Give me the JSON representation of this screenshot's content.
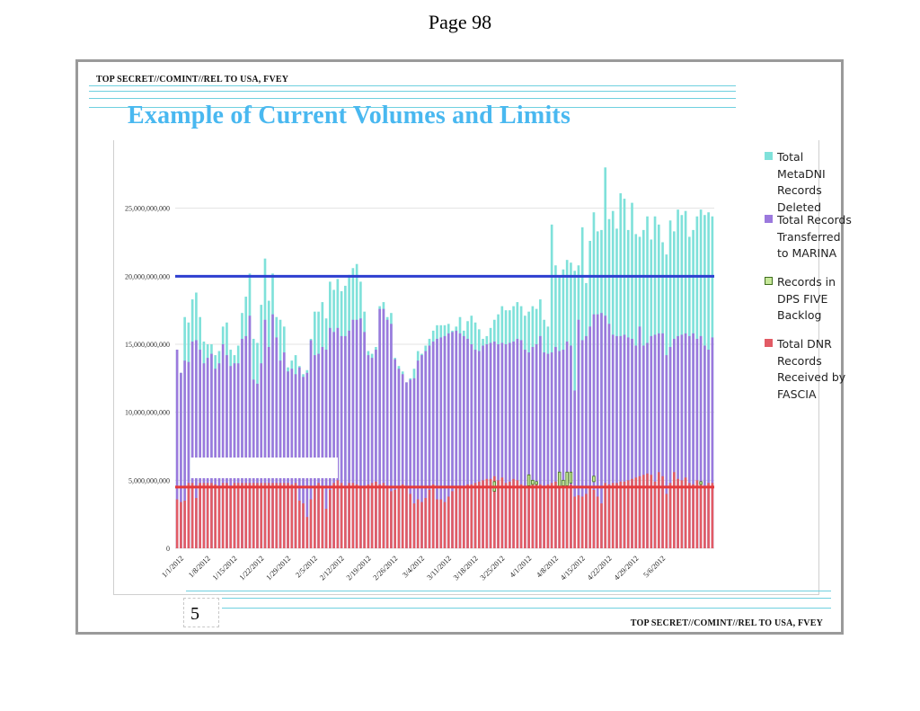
{
  "page_header": {
    "page_label": "Page 98"
  },
  "slide": {
    "classification_top": "TOP SECRET//COMINT//REL TO USA, FVEY",
    "classification_bottom": "TOP SECRET//COMINT//REL TO USA, FVEY",
    "title": "Example of  Current Volumes and Limits",
    "slide_number": "5"
  },
  "colors": {
    "deleted": "#7fe1da",
    "transferred": "#9b79dd",
    "backlog_fill": "#c7e89a",
    "backlog_stroke": "#3f6e1e",
    "received": "#e25b65",
    "limit_blue": "#2e3fd0",
    "limit_red": "#e53a3a",
    "title": "#49b8f0",
    "rule": "#6fd0df"
  },
  "legend": [
    {
      "key": "deleted",
      "label": "Total\nMetaDNI\nRecords\nDeleted"
    },
    {
      "key": "transferred",
      "label": "Total Records\nTransferred\nto MARINA"
    },
    {
      "key": "backlog",
      "label": "Records in\nDPS FIVE\nBacklog"
    },
    {
      "key": "received",
      "label": "Total DNR\nRecords\nReceived by\nFASCIA"
    }
  ],
  "chart_data": {
    "type": "bar",
    "stacked": true,
    "x_start": "1/1/2012",
    "x_end": "5/9/2012",
    "x_tick_labels": [
      "1/1/2012",
      "1/8/2012",
      "1/15/2012",
      "1/22/2012",
      "1/29/2012",
      "2/5/2012",
      "2/12/2012",
      "2/19/2012",
      "2/26/2012",
      "3/4/2012",
      "3/11/2012",
      "3/18/2012",
      "3/25/2012",
      "4/1/2012",
      "4/8/2012",
      "4/15/2012",
      "4/22/2012",
      "4/29/2012",
      "5/6/2012"
    ],
    "y_tick_labels": [
      "0",
      "5,000,000,000",
      "10,000,000,000",
      "15,000,000,000",
      "20,000,000,000",
      "25,000,000,000"
    ],
    "ylim": [
      0,
      30000000000
    ],
    "grid": true,
    "legend_position": "right",
    "reference_lines": [
      {
        "value": 20000000000,
        "color_key": "limit_blue"
      },
      {
        "value": 4500000000,
        "color_key": "limit_red"
      }
    ],
    "series": [
      {
        "name": "Total DNR Records Received by FASCIA",
        "color_key": "received",
        "values": [
          3600000000.0,
          3400000000.0,
          3500000000.0,
          4800000000.0,
          4800000000.0,
          3700000000.0,
          4800000000.0,
          4800000000.0,
          4800000000.0,
          4800000000.0,
          4700000000.0,
          4500000000.0,
          4800000000.0,
          4800000000.0,
          4600000000.0,
          4800000000.0,
          4800000000.0,
          4800000000.0,
          4800000000.0,
          4800000000.0,
          4800000000.0,
          4800000000.0,
          4800000000.0,
          4800000000.0,
          4800000000.0,
          4800000000.0,
          4800000000.0,
          4800000000.0,
          4800000000.0,
          4800000000.0,
          4700000000.0,
          4800000000.0,
          3500000000.0,
          3300000000.0,
          2300000000.0,
          3600000000.0,
          4500000000.0,
          4800000000.0,
          4500000000.0,
          2900000000.0,
          4300000000.0,
          4800000000.0,
          5000000000.0,
          4800000000.0,
          4400000000.0,
          4800000000.0,
          4800000000.0,
          4700000000.0,
          4600000000.0,
          4600000000.0,
          4700000000.0,
          4800000000.0,
          4900000000.0,
          4700000000.0,
          4800000000.0,
          4600000000.0,
          4200000000.0,
          4300000000.0,
          4600000000.0,
          4700000000.0,
          4500000000.0,
          4000000000.0,
          3300000000.0,
          3600000000.0,
          3400000000.0,
          3700000000.0,
          4300000000.0,
          4700000000.0,
          3600000000.0,
          3600000000.0,
          3400000000.0,
          3800000000.0,
          4200000000.0,
          4400000000.0,
          4600000000.0,
          4500000000.0,
          4700000000.0,
          4700000000.0,
          4800000000.0,
          4900000000.0,
          5000000000.0,
          5100000000.0,
          5100000000.0,
          5300000000.0,
          5000000000.0,
          5200000000.0,
          4800000000.0,
          4900000000.0,
          5100000000.0,
          5000000000.0,
          4700000000.0,
          4600000000.0,
          5000000000.0,
          5000000000.0,
          4800000000.0,
          4700000000.0,
          4600000000.0,
          4700000000.0,
          4800000000.0,
          4900000000.0,
          4800000000.0,
          4600000000.0,
          4900000000.0,
          4700000000.0,
          3800000000.0,
          3900000000.0,
          3800000000.0,
          4000000000.0,
          4500000000.0,
          4300000000.0,
          3800000000.0,
          3300000000.0,
          4800000000.0,
          4700000000.0,
          4800000000.0,
          4800000000.0,
          4900000000.0,
          4900000000.0,
          5000000000.0,
          5100000000.0,
          5200000000.0,
          5300000000.0,
          5400000000.0,
          5500000000.0,
          5400000000.0,
          4900000000.0,
          5600000000.0,
          5300000000.0,
          4000000000.0,
          4800000000.0,
          5600000000.0,
          5100000000.0,
          5000000000.0,
          5200000000.0,
          4800000000.0,
          4700000000.0,
          5000000000.0,
          4900000000.0,
          4600000000.0,
          4800000000.0,
          4800000000.0
        ]
      },
      {
        "name": "Total Records Transferred to MARINA",
        "color_key": "transferred",
        "values": [
          14600000000.0,
          12900000000.0,
          13800000000.0,
          13700000000.0,
          15200000000.0,
          15300000000.0,
          14600000000.0,
          13600000000.0,
          14000000000.0,
          14300000000.0,
          13200000000.0,
          13600000000.0,
          15000000000.0,
          14200000000.0,
          13400000000.0,
          13600000000.0,
          13600000000.0,
          15400000000.0,
          15600000000.0,
          17100000000.0,
          12400000000.0,
          12100000000.0,
          13600000000.0,
          16800000000.0,
          14800000000.0,
          17200000000.0,
          15500000000.0,
          13800000000.0,
          14400000000.0,
          13000000000.0,
          13200000000.0,
          12800000000.0,
          13300000000.0,
          12600000000.0,
          12900000000.0,
          15300000000.0,
          14200000000.0,
          14300000000.0,
          14800000000.0,
          14600000000.0,
          16200000000.0,
          15900000000.0,
          16200000000.0,
          15600000000.0,
          15600000000.0,
          16000000000.0,
          16800000000.0,
          16800000000.0,
          16900000000.0,
          15900000000.0,
          14200000000.0,
          14000000000.0,
          14600000000.0,
          17600000000.0,
          17600000000.0,
          16800000000.0,
          16500000000.0,
          13900000000.0,
          13200000000.0,
          12800000000.0,
          12200000000.0,
          12400000000.0,
          12500000000.0,
          13800000000.0,
          14200000000.0,
          14500000000.0,
          14900000000.0,
          15200000000.0,
          15400000000.0,
          15500000000.0,
          15600000000.0,
          15800000000.0,
          15900000000.0,
          16000000000.0,
          15800000000.0,
          15600000000.0,
          15400000000.0,
          15000000000.0,
          14600000000.0,
          14500000000.0,
          14900000000.0,
          15000000000.0,
          15100000000.0,
          15200000000.0,
          15000000000.0,
          15100000000.0,
          15000000000.0,
          15100000000.0,
          15200000000.0,
          15400000000.0,
          15300000000.0,
          14600000000.0,
          14400000000.0,
          14800000000.0,
          15000000000.0,
          15600000000.0,
          14400000000.0,
          14300000000.0,
          14400000000.0,
          14800000000.0,
          14500000000.0,
          14600000000.0,
          15200000000.0,
          14900000000.0,
          11600000000.0,
          16800000000.0,
          15300000000.0,
          15600000000.0,
          16300000000.0,
          17200000000.0,
          17200000000.0,
          17300000000.0,
          17100000000.0,
          16500000000.0,
          15700000000.0,
          15600000000.0,
          15600000000.0,
          15700000000.0,
          15500000000.0,
          15400000000.0,
          14900000000.0,
          16300000000.0,
          14900000000.0,
          15100000000.0,
          15600000000.0,
          15700000000.0,
          15800000000.0,
          15800000000.0,
          14200000000.0,
          14800000000.0,
          15400000000.0,
          15600000000.0,
          15700000000.0,
          15800000000.0,
          15600000000.0,
          15800000000.0,
          15400000000.0,
          15600000000.0,
          14900000000.0,
          14600000000.0,
          15500000000.0
        ]
      },
      {
        "name": "Total MetaDNI Records Deleted",
        "color_key": "deleted",
        "values": [
          14600000000.0,
          12900000000.0,
          17000000000.0,
          16600000000.0,
          18300000000.0,
          18800000000.0,
          17000000000.0,
          15200000000.0,
          15000000000.0,
          15000000000.0,
          14200000000.0,
          14500000000.0,
          16300000000.0,
          16600000000.0,
          14600000000.0,
          14200000000.0,
          14900000000.0,
          17300000000.0,
          18500000000.0,
          20200000000.0,
          15400000000.0,
          15100000000.0,
          17900000000.0,
          21300000000.0,
          18200000000.0,
          20200000000.0,
          17000000000.0,
          16800000000.0,
          16300000000.0,
          13300000000.0,
          13800000000.0,
          14200000000.0,
          13400000000.0,
          12800000000.0,
          13100000000.0,
          15400000000.0,
          17400000000.0,
          17400000000.0,
          18100000000.0,
          16900000000.0,
          19600000000.0,
          19000000000.0,
          19800000000.0,
          18900000000.0,
          19300000000.0,
          20100000000.0,
          20600000000.0,
          20900000000.0,
          19600000000.0,
          17400000000.0,
          14500000000.0,
          14300000000.0,
          14800000000.0,
          17800000000.0,
          18100000000.0,
          17000000000.0,
          17300000000.0,
          14000000000.0,
          13400000000.0,
          13000000000.0,
          12200000000.0,
          12500000000.0,
          13200000000.0,
          14500000000.0,
          14300000000.0,
          14900000000.0,
          15400000000.0,
          16000000000.0,
          16400000000.0,
          16400000000.0,
          16400000000.0,
          16500000000.0,
          16000000000.0,
          16300000000.0,
          17000000000.0,
          16000000000.0,
          16700000000.0,
          17100000000.0,
          16600000000.0,
          16100000000.0,
          15400000000.0,
          15600000000.0,
          16200000000.0,
          16800000000.0,
          17200000000.0,
          17800000000.0,
          17500000000.0,
          17500000000.0,
          17800000000.0,
          18100000000.0,
          17800000000.0,
          17100000000.0,
          17400000000.0,
          17800000000.0,
          17600000000.0,
          18300000000.0,
          16800000000.0,
          16300000000.0,
          23800000000.0,
          20800000000.0,
          20000000000.0,
          20500000000.0,
          21200000000.0,
          21000000000.0,
          20400000000.0,
          20800000000.0,
          23600000000.0,
          19500000000.0,
          22600000000.0,
          24700000000.0,
          23300000000.0,
          23400000000.0,
          28000000000.0,
          24200000000.0,
          24800000000.0,
          23500000000.0,
          26100000000.0,
          25700000000.0,
          23400000000.0,
          25400000000.0,
          23100000000.0,
          22900000000.0,
          23400000000.0,
          24400000000.0,
          22700000000.0,
          24400000000.0,
          23800000000.0,
          22500000000.0,
          21600000000.0,
          24100000000.0,
          23300000000.0,
          24900000000.0,
          24500000000.0,
          24800000000.0,
          22900000000.0,
          23400000000.0,
          24400000000.0,
          24900000000.0,
          24500000000.0,
          24700000000.0,
          24400000000.0
        ]
      },
      {
        "name": "Records in DPS FIVE Backlog",
        "color_key": "backlog",
        "points": [
          {
            "index": 83,
            "base": 4200000000.0,
            "top": 4900000000.0
          },
          {
            "index": 92,
            "base": 4600000000.0,
            "top": 5400000000.0
          },
          {
            "index": 93,
            "base": 4700000000.0,
            "top": 5000000000.0
          },
          {
            "index": 94,
            "base": 4700000000.0,
            "top": 4900000000.0
          },
          {
            "index": 100,
            "base": 4500000000.0,
            "top": 5600000000.0
          },
          {
            "index": 101,
            "base": 4600000000.0,
            "top": 5000000000.0
          },
          {
            "index": 102,
            "base": 4600000000.0,
            "top": 5600000000.0
          },
          {
            "index": 103,
            "base": 4800000000.0,
            "top": 5600000000.0
          },
          {
            "index": 109,
            "base": 4900000000.0,
            "top": 5300000000.0
          },
          {
            "index": 137,
            "base": 4700000000.0,
            "top": 4900000000.0
          }
        ]
      }
    ]
  }
}
